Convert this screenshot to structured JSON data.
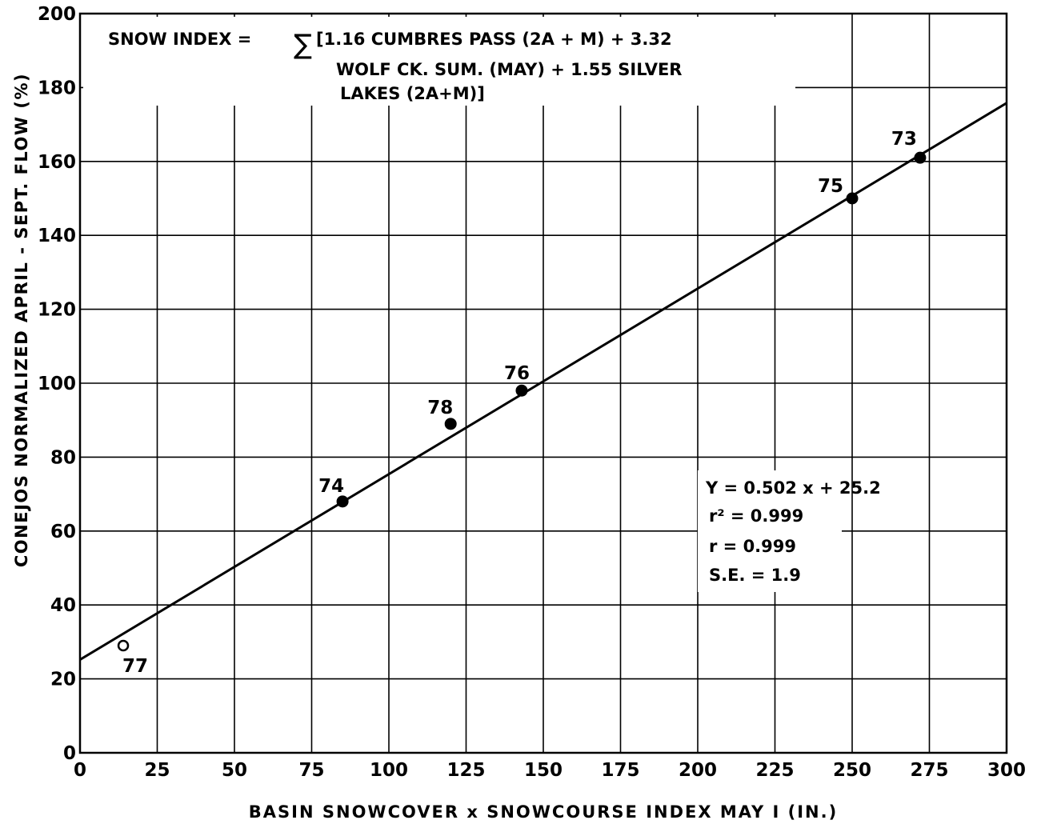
{
  "chart_data": {
    "type": "scatter",
    "xlabel": "BASIN SNOWCOVER x SNOWCOURSE INDEX MAY I (IN.)",
    "ylabel": "CONEJOS NORMALIZED APRIL - SEPT. FLOW (%)",
    "xlim": [
      0,
      300
    ],
    "ylim": [
      0,
      200
    ],
    "x_ticks": [
      "0",
      "25",
      "50",
      "75",
      "100",
      "125",
      "150",
      "175",
      "200",
      "225",
      "250",
      "275",
      "300"
    ],
    "y_ticks": [
      "0",
      "20",
      "40",
      "60",
      "80",
      "100",
      "120",
      "140",
      "160",
      "180",
      "200"
    ],
    "grid": true,
    "points": [
      {
        "label": "77",
        "x": 14,
        "y": 29,
        "hollow": true
      },
      {
        "label": "74",
        "x": 85,
        "y": 68
      },
      {
        "label": "78",
        "x": 120,
        "y": 89
      },
      {
        "label": "76",
        "x": 143,
        "y": 98
      },
      {
        "label": "75",
        "x": 250,
        "y": 150
      },
      {
        "label": "73",
        "x": 272,
        "y": 161
      }
    ],
    "fit_line": {
      "slope": 0.502,
      "intercept": 25.2
    },
    "snow_index_box": {
      "line1_prefix": "SNOW INDEX =",
      "sigma": "∑",
      "line1": "[1.16 CUMBRES PASS (2A + M) + 3.32",
      "line2": "WOLF CK. SUM. (MAY) + 1.55 SILVER",
      "line3": "LAKES (2A+M)]"
    },
    "stats_box": {
      "equation": "Y = 0.502 x + 25.2",
      "r2": "r² = 0.999",
      "r": "r = 0.999",
      "se": "S.E. = 1.9"
    }
  }
}
